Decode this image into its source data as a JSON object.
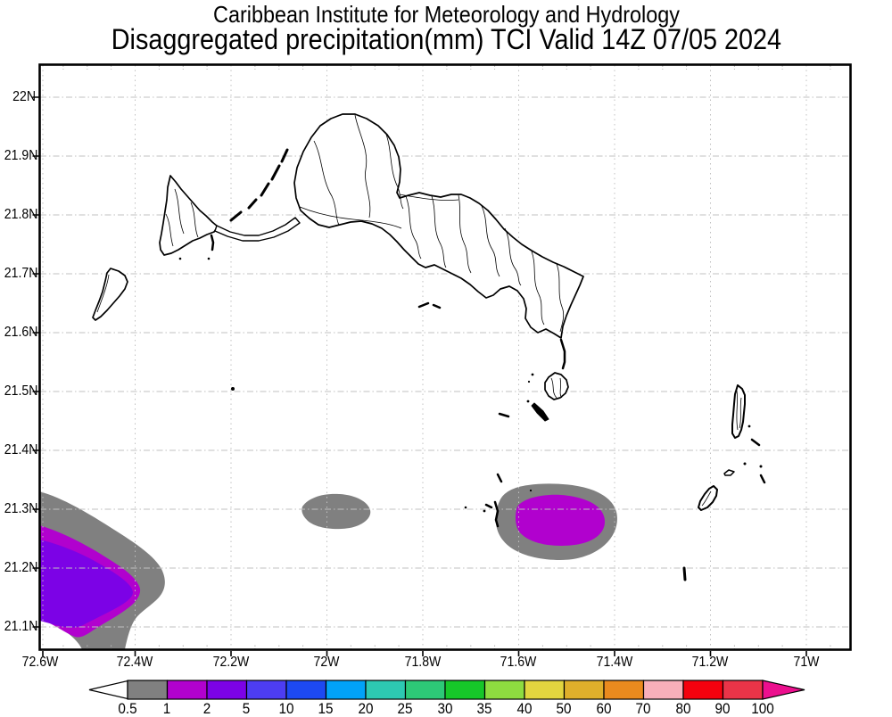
{
  "title": {
    "line1": "Caribbean Institute for Meteorology and Hydrology",
    "line2": "Disaggregated precipitation(mm) TCI Valid 14Z 07/05 2024"
  },
  "axes": {
    "lat_labels": [
      "22N",
      "21.9N",
      "21.8N",
      "21.7N",
      "21.6N",
      "21.5N",
      "21.4N",
      "21.3N",
      "21.2N",
      "21.1N"
    ],
    "lon_labels": [
      "72.6W",
      "72.4W",
      "72.2W",
      "72W",
      "71.8W",
      "71.6W",
      "71.4W",
      "71.2W",
      "71W"
    ]
  },
  "colorbar": {
    "unit": "mm",
    "tick_labels": [
      "0.5",
      "1",
      "2",
      "5",
      "10",
      "15",
      "20",
      "25",
      "30",
      "35",
      "40",
      "50",
      "60",
      "70",
      "80",
      "90",
      "100"
    ],
    "colors": [
      "#808080",
      "#B101CE",
      "#7C02E6",
      "#4D3DF2",
      "#1D49F2",
      "#01A2F8",
      "#2DC9B2",
      "#2DC977",
      "#16C729",
      "#8EDC40",
      "#E2D53F",
      "#DFAF2B",
      "#EA8A1E",
      "#F8AFBA",
      "#F4010E",
      "#EA3448"
    ],
    "left_arrow_color": "#FFFFFF",
    "right_arrow_color": "#EC0F8E"
  },
  "map": {
    "region": "Turks and Caicos Islands",
    "lat_range": [
      "21.1N",
      "22N"
    ],
    "lon_range": [
      "72.6W",
      "71W"
    ],
    "grid_color": "#c0c0c0",
    "shade_colors": {
      "band_0_5_to_1": "#808080",
      "band_1_to_2": "#B101CE",
      "band_2_to_5": "#7C02E6"
    },
    "precip_features": [
      {
        "location": "southwest corner near 72.5W 21.2N",
        "bands_mm": [
          "0.5-1",
          "1-2",
          "2-5"
        ],
        "peak_band_mm": "2-5"
      },
      {
        "location": "near 72W 21.3N",
        "bands_mm": [
          "0.5-1"
        ],
        "peak_band_mm": "0.5-1"
      },
      {
        "location": "near 71.5W 21.28N",
        "bands_mm": [
          "0.5-1",
          "1-2"
        ],
        "peak_band_mm": "1-2"
      }
    ]
  }
}
